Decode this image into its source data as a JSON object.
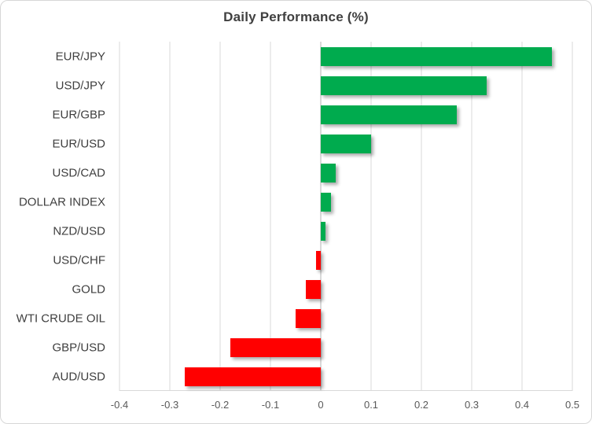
{
  "chart_data": {
    "type": "bar",
    "orientation": "horizontal",
    "title": "Daily Performance (%)",
    "categories": [
      "EUR/JPY",
      "USD/JPY",
      "EUR/GBP",
      "EUR/USD",
      "USD/CAD",
      "DOLLAR INDEX",
      "NZD/USD",
      "USD/CHF",
      "GOLD",
      "WTI CRUDE OIL",
      "GBP/USD",
      "AUD/USD"
    ],
    "values": [
      0.46,
      0.33,
      0.27,
      0.1,
      0.03,
      0.02,
      0.01,
      -0.01,
      -0.03,
      -0.05,
      -0.18,
      -0.27
    ],
    "xlim": [
      -0.4,
      0.5
    ],
    "xticks": [
      -0.4,
      -0.3,
      -0.2,
      -0.1,
      0,
      0.1,
      0.2,
      0.3,
      0.4,
      0.5
    ],
    "xtick_labels": [
      "-0.4",
      "-0.3",
      "-0.2",
      "-0.1",
      "0",
      "0.1",
      "0.2",
      "0.3",
      "0.4",
      "0.5"
    ],
    "grid": "vertical",
    "legend": "none",
    "colors": {
      "positive": "#00ab4e",
      "negative": "#ff0000",
      "gridline": "#d9d9d9",
      "title": "#404040",
      "tick_text": "#595959",
      "category_text": "#3f3f3f"
    }
  }
}
